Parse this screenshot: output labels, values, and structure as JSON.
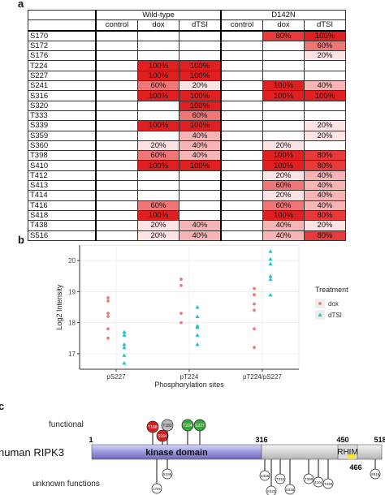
{
  "panels": {
    "a": "a",
    "b": "b",
    "c": "c"
  },
  "colors": {
    "c100": "#e02020",
    "c80": "#e83a3a",
    "c60": "#ef7676",
    "c40": "#f7b4b4",
    "c20": "#fde3e3",
    "dox": "#f07a74",
    "dTSI": "#1ec2c2"
  },
  "heatmap": {
    "groups": [
      "Wild-type",
      "D142N"
    ],
    "conditions": [
      "control",
      "dox",
      "dTSI",
      "control",
      "dox",
      "dTSI"
    ],
    "rows": [
      {
        "site": "S170",
        "cells": [
          "",
          "",
          "",
          "",
          "80%",
          "100%"
        ]
      },
      {
        "site": "S172",
        "cells": [
          "",
          "",
          "",
          "",
          "",
          "60%"
        ]
      },
      {
        "site": "S176",
        "cells": [
          "",
          "",
          "",
          "",
          "",
          "20%"
        ]
      },
      {
        "site": "T224",
        "cells": [
          "",
          "100%",
          "100%",
          "",
          "",
          ""
        ]
      },
      {
        "site": "S227",
        "cells": [
          "",
          "100%",
          "100%",
          "",
          "",
          ""
        ]
      },
      {
        "site": "S241",
        "cells": [
          "",
          "60%",
          "20%",
          "",
          "100%",
          "40%"
        ]
      },
      {
        "site": "S316",
        "cells": [
          "",
          "100%",
          "100%",
          "",
          "100%",
          "100%"
        ]
      },
      {
        "site": "S320",
        "cells": [
          "",
          "",
          "100%",
          "",
          "",
          ""
        ]
      },
      {
        "site": "T333",
        "cells": [
          "",
          "",
          "60%",
          "",
          "",
          ""
        ]
      },
      {
        "site": "S339",
        "cells": [
          "",
          "100%",
          "100%",
          "",
          "",
          "20%"
        ]
      },
      {
        "site": "S359",
        "cells": [
          "",
          "",
          "40%",
          "",
          "",
          "20%"
        ]
      },
      {
        "site": "S360",
        "cells": [
          "",
          "20%",
          "40%",
          "",
          "20%",
          ""
        ]
      },
      {
        "site": "T398",
        "cells": [
          "",
          "60%",
          "40%",
          "",
          "100%",
          "80%"
        ]
      },
      {
        "site": "S410",
        "cells": [
          "",
          "100%",
          "100%",
          "",
          "100%",
          "80%"
        ]
      },
      {
        "site": "T412",
        "cells": [
          "",
          "",
          "",
          "",
          "20%",
          "40%"
        ]
      },
      {
        "site": "S413",
        "cells": [
          "",
          "",
          "",
          "",
          "60%",
          "40%"
        ]
      },
      {
        "site": "T414",
        "cells": [
          "",
          "",
          "",
          "",
          "20%",
          "40%"
        ]
      },
      {
        "site": "T416",
        "cells": [
          "",
          "60%",
          "",
          "",
          "60%",
          "40%"
        ]
      },
      {
        "site": "S418",
        "cells": [
          "",
          "100%",
          "",
          "",
          "100%",
          "80%"
        ]
      },
      {
        "site": "T438",
        "cells": [
          "",
          "20%",
          "40%",
          "",
          "40%",
          "20%"
        ]
      },
      {
        "site": "S516",
        "cells": [
          "",
          "20%",
          "40%",
          "",
          "40%",
          "80%"
        ]
      }
    ]
  },
  "chart_data": {
    "type": "scatter",
    "xlabel": "Phosphorylation sites",
    "ylabel": "Log2 Intensity",
    "categories": [
      "pS227",
      "pT224",
      "pT224/pS227"
    ],
    "ylim": [
      16.5,
      20.5
    ],
    "yticks": [
      17,
      18,
      19,
      20
    ],
    "legend": {
      "title": "Treatment",
      "position": "right"
    },
    "series": [
      {
        "name": "dox",
        "points": [
          [
            0,
            18.8
          ],
          [
            0,
            18.7
          ],
          [
            0,
            18.3
          ],
          [
            0,
            18.2
          ],
          [
            0,
            17.8
          ],
          [
            0,
            17.5
          ],
          [
            1,
            19.4
          ],
          [
            1,
            19.2
          ],
          [
            1,
            18.3
          ],
          [
            1,
            18.0
          ],
          [
            2,
            19.1
          ],
          [
            2,
            18.9
          ],
          [
            2,
            18.6
          ],
          [
            2,
            18.4
          ],
          [
            2,
            17.8
          ],
          [
            2,
            17.2
          ]
        ]
      },
      {
        "name": "dTSI",
        "points": [
          [
            0,
            17.7
          ],
          [
            0,
            17.6
          ],
          [
            0,
            17.3
          ],
          [
            0,
            17.2
          ],
          [
            0,
            16.95
          ],
          [
            0,
            16.7
          ],
          [
            1,
            18.5
          ],
          [
            1,
            18.2
          ],
          [
            1,
            17.9
          ],
          [
            1,
            17.85
          ],
          [
            1,
            17.6
          ],
          [
            1,
            17.3
          ],
          [
            2,
            20.3
          ],
          [
            2,
            20.05
          ],
          [
            2,
            19.9
          ],
          [
            2,
            19.5
          ],
          [
            2,
            19.4
          ],
          [
            2,
            18.9
          ]
        ]
      }
    ]
  },
  "diagram": {
    "functional_label": "functional",
    "unknown_label": "unknown functions",
    "protein_label": "human RIPK3",
    "domain_label": "kinase domain",
    "rhim_label": "RHIM",
    "positions": {
      "start": "1",
      "kinase_end": "316",
      "rhim_start": "450",
      "rhim_end": "466",
      "end": "518"
    },
    "functional_sites": [
      {
        "label": "S164",
        "color": "#d62020"
      },
      {
        "label": "T168",
        "color": "#d62020"
      },
      {
        "label": "T182",
        "color": "#bdbdbd"
      },
      {
        "label": "T224",
        "color": "#3aa63a"
      },
      {
        "label": "S227",
        "color": "#3aa63a"
      }
    ],
    "unknown_sites": [
      "170s",
      "S199",
      "S316",
      "S320",
      "T333",
      "S339",
      "T398",
      "410s",
      "T438",
      "S516"
    ]
  }
}
